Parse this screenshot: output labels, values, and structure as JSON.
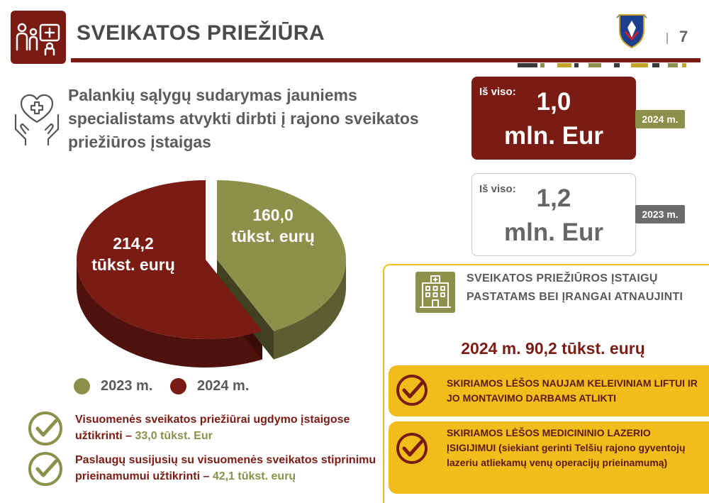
{
  "header": {
    "title": "SVEIKATOS PRIEŽIŪRA",
    "page_number": "7",
    "icon": "family-health-icon",
    "logo": "coat-of-arms-logo"
  },
  "colors": {
    "maroon": "#7a1b14",
    "olive": "#8b914a",
    "yellow": "#f1bd1a",
    "gray": "#6b6b6b"
  },
  "heading": {
    "icon": "heart-hands-icon",
    "text": "Palankių sąlygų sudarymas jauniems specialistams atvykti dirbti į rajono sveikatos priežiūros įstaigas"
  },
  "chart_data": {
    "type": "pie",
    "slices": [
      {
        "category": "2024 m.",
        "value": 214.2,
        "label_line1": "214,2",
        "label_line2": "tūkst. eurų",
        "color": "#7a1b14"
      },
      {
        "category": "2023 m.",
        "value": 160.0,
        "label_line1": "160,0",
        "label_line2": "tūkst. eurų",
        "color": "#8b914a"
      }
    ],
    "legend": [
      {
        "label": "2023 m.",
        "color": "#8b914a"
      },
      {
        "label": "2024 m.",
        "color": "#7a1b14"
      }
    ],
    "legend_position": "bottom"
  },
  "bottom_items": [
    {
      "text": "Visuomenės sveikatos priežiūrai ugdymo įstaigose užtikrinti – ",
      "highlight": "33,0 tūkst. Eur"
    },
    {
      "text": "Paslaugų susijusių su visuomenės sveikatos stiprinimu prieinamumui užtikrinti – ",
      "highlight": "42,1 tūkst. eurų"
    }
  ],
  "totals": [
    {
      "label": "Iš viso:",
      "value_line1": "1,0",
      "value_line2": "mln. Eur",
      "year": "2024 m."
    },
    {
      "label": "Iš viso:",
      "value_line1": "1,2",
      "value_line2": "mln. Eur",
      "year": "2023 m."
    }
  ],
  "panel": {
    "icon": "hospital-building-icon",
    "title": "SVEIKATOS PRIEŽIŪROS ĮSTAIGŲ PASTATAMS BEI ĮRANGAI ATNAUJINTI",
    "amount": "2024 m. 90,2 tūkst. eurų",
    "items": [
      {
        "text": "SKIRIAMOS LĖŠOS NAUJAM KELEIVINIAM LIFTUI IR JO MONTAVIMO DARBAMS ATLIKTI"
      },
      {
        "text": "SKIRIAMOS LĖŠOS MEDICININIO LAZERIO ĮSIGIJIMUI (siekiant gerinti Telšių rajono gyventojų lazeriu atliekamų venų operacijų prieinamumą)"
      }
    ]
  }
}
